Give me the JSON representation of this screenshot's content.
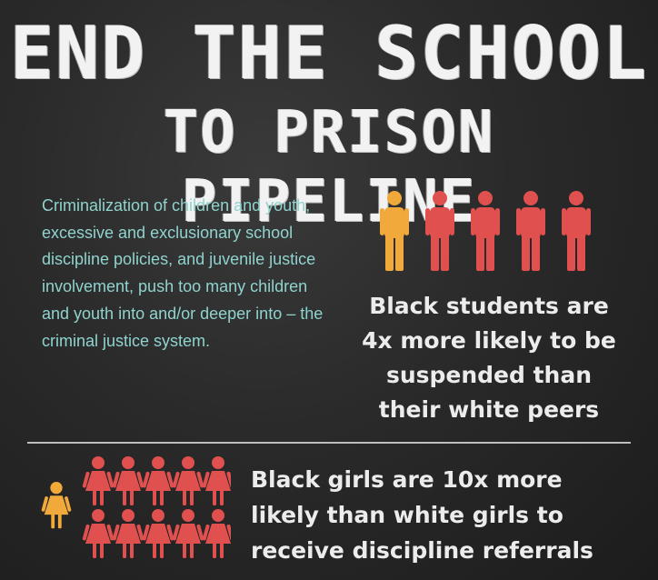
{
  "title": {
    "line1": "END THE SCHOOL",
    "line2": "TO PRISON PIPELINE"
  },
  "body_text": "Criminalization of children and youth, excessive and exclusionary school discipline policies, and juvenile justice involvement, push too many children and youth into and/or deeper into – the criminal justice system.",
  "stat1": {
    "line1": "Black students are",
    "line2": "4x more likely to be",
    "line3": "suspended than",
    "line4": "their white peers"
  },
  "stat2": {
    "line1": "Black girls are 10x more",
    "line2": "likely than white girls to",
    "line3": "receive discipline referrals"
  },
  "icons": {
    "men": {
      "highlighted": 1,
      "total": 5,
      "icon": "person-icon"
    },
    "girls": {
      "highlighted": 1,
      "total": 10,
      "icon": "girl-icon"
    }
  },
  "colors": {
    "highlight": "#f2a93b",
    "red": "#e0504e",
    "body_text": "#8fd3cf",
    "title": "#f2f2f2"
  }
}
